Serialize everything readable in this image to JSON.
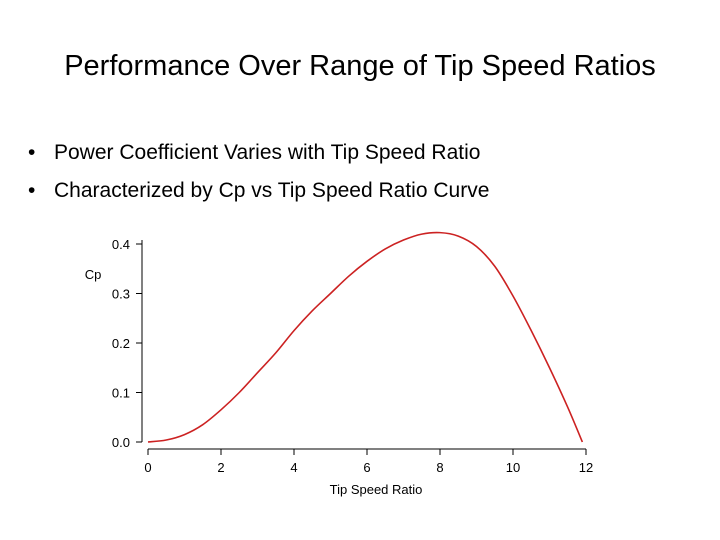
{
  "slide": {
    "title": "Performance Over Range of Tip Speed Ratios",
    "bullets": [
      "Power Coefficient Varies with Tip Speed Ratio",
      "Characterized by Cp vs Tip Speed Ratio Curve"
    ]
  },
  "chart_data": {
    "type": "line",
    "xlabel": "Tip Speed Ratio",
    "ylabel": "Cp",
    "xlim": [
      0,
      12
    ],
    "ylim": [
      0,
      0.4
    ],
    "x_ticks": [
      "0",
      "2",
      "4",
      "6",
      "8",
      "10",
      "12"
    ],
    "y_ticks": [
      "0.0",
      "0.1",
      "0.2",
      "0.3",
      "0.4"
    ],
    "grid": false,
    "line_color": "#cc2222",
    "series": [
      {
        "x": [
          0,
          0.5,
          1,
          1.5,
          2,
          2.5,
          3,
          3.5,
          4,
          4.5,
          5,
          5.5,
          6,
          6.5,
          7,
          7.5,
          8,
          8.5,
          9,
          9.5,
          10,
          10.5,
          11,
          11.5,
          11.9
        ],
        "y": [
          0.0,
          0.004,
          0.015,
          0.035,
          0.065,
          0.1,
          0.14,
          0.18,
          0.225,
          0.265,
          0.3,
          0.335,
          0.365,
          0.39,
          0.408,
          0.42,
          0.423,
          0.416,
          0.395,
          0.355,
          0.295,
          0.225,
          0.15,
          0.07,
          0.0
        ]
      }
    ]
  }
}
